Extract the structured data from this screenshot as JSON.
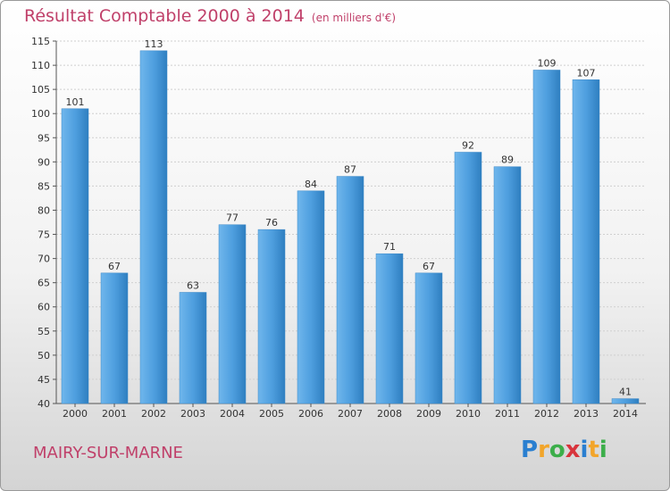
{
  "title": "Résultat Comptable 2000 à 2014",
  "title_unit": "(en milliers d'€)",
  "location": "MAIRY-SUR-MARNE",
  "logo": {
    "letters": [
      "P",
      "r",
      "o",
      "x",
      "i",
      "t",
      "i"
    ],
    "colors": [
      "#2a7fd0",
      "#f2a52a",
      "#3cae4a",
      "#d8343c",
      "#2a7fd0",
      "#f2a52a",
      "#3cae4a"
    ]
  },
  "colors": {
    "bar": "#4f9fdf",
    "bar_light": "#6fb6ec",
    "bar_dark": "#2f7fc0",
    "title": "#c0406a",
    "text": "#333333"
  },
  "chart_data": {
    "type": "bar",
    "categories": [
      "2000",
      "2001",
      "2002",
      "2003",
      "2004",
      "2005",
      "2006",
      "2007",
      "2008",
      "2009",
      "2010",
      "2011",
      "2012",
      "2013",
      "2014"
    ],
    "values": [
      101,
      67,
      113,
      63,
      77,
      76,
      84,
      87,
      71,
      67,
      92,
      89,
      109,
      107,
      41
    ],
    "data_labels": [
      "101",
      "67",
      "113",
      "63",
      "77",
      "76",
      "84",
      "87",
      "71",
      "67",
      "92",
      "89",
      "109",
      "107",
      "41"
    ],
    "ylim": [
      40,
      115
    ],
    "yticks": [
      40,
      45,
      50,
      55,
      60,
      65,
      70,
      75,
      80,
      85,
      90,
      95,
      100,
      105,
      110,
      115
    ],
    "grid": true,
    "legend": "none"
  }
}
